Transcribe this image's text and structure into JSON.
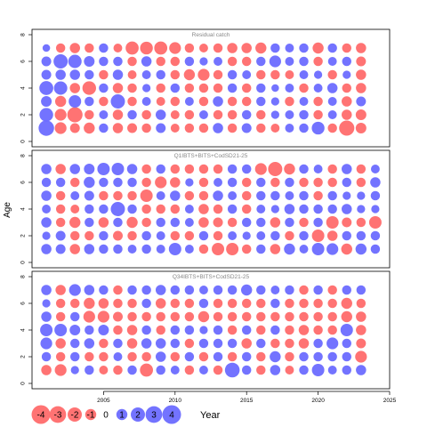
{
  "chart_data": {
    "type": "scatter",
    "subtype": "bubble-residuals",
    "ylabel": "Age",
    "xlabel": "Year",
    "xlim": [
      2000,
      2025
    ],
    "x_ticks": [
      2005,
      2010,
      2015,
      2020,
      2025
    ],
    "ylim": [
      0,
      8
    ],
    "y_ticks": [
      0,
      2,
      4,
      6,
      8
    ],
    "colors": {
      "positive": "#6b6bff",
      "negative": "#ff6b6b"
    },
    "legend": {
      "position": "bottom-left",
      "entries": [
        {
          "label": "-4",
          "value": -4
        },
        {
          "label": "-3",
          "value": -3
        },
        {
          "label": "-2",
          "value": -2
        },
        {
          "label": "-1",
          "value": -1
        },
        {
          "label": "0",
          "value": 0
        },
        {
          "label": "1",
          "value": 1
        },
        {
          "label": "2",
          "value": 2
        },
        {
          "label": "3",
          "value": 3
        },
        {
          "label": "4",
          "value": 4
        }
      ]
    },
    "panels": [
      {
        "title": "Residual catch",
        "x_start": 2001,
        "ages": [
          1,
          2,
          3,
          4,
          5,
          6,
          7
        ],
        "residuals": [
          [
            2.5,
            -1.2,
            -0.7,
            -1.0,
            0.6,
            -0.8,
            -0.7,
            -0.6,
            0.7,
            -0.5,
            -0.6,
            -0.6,
            0.8,
            -0.6,
            0.7,
            -0.6,
            -0.5,
            0.5,
            0.6,
            1.5,
            -0.6,
            -2.4,
            -0.9
          ],
          [
            1.8,
            -1.2,
            -2.4,
            -0.6,
            0.5,
            -0.8,
            0.6,
            -0.6,
            0.8,
            -0.5,
            -0.6,
            0.5,
            -0.6,
            -0.6,
            0.6,
            -0.6,
            0.4,
            0.5,
            0.6,
            -0.6,
            0.5,
            -0.8,
            -0.9
          ],
          [
            0.9,
            -1.0,
            1.4,
            0.6,
            -0.6,
            2.0,
            -0.6,
            0.5,
            -0.5,
            -0.6,
            0.5,
            -0.6,
            0.8,
            -0.6,
            -0.6,
            0.6,
            0.4,
            -0.6,
            0.5,
            -0.6,
            0.5,
            -0.8,
            0.7
          ],
          [
            1.9,
            1.7,
            -0.8,
            -1.8,
            0.6,
            -0.8,
            -0.6,
            0.4,
            -0.6,
            0.6,
            -0.6,
            -0.6,
            -0.6,
            0.6,
            -0.6,
            0.6,
            0.3,
            0.5,
            -0.6,
            0.5,
            0.8,
            -0.6,
            -0.8
          ],
          [
            0.7,
            0.8,
            0.8,
            0.6,
            -0.6,
            0.8,
            -0.5,
            0.5,
            0.6,
            -0.6,
            -1.0,
            -1.2,
            -0.6,
            0.6,
            0.5,
            -0.6,
            -0.6,
            -0.5,
            0.5,
            0.4,
            -0.6,
            0.4,
            -0.8
          ],
          [
            0.7,
            2.0,
            1.7,
            0.9,
            0.6,
            0.6,
            -0.6,
            0.8,
            -0.6,
            -0.6,
            0.6,
            0.4,
            0.5,
            -0.6,
            -0.6,
            0.6,
            1.2,
            0.5,
            0.6,
            -0.6,
            0.5,
            0.6,
            -0.7
          ],
          [
            0.3,
            -0.6,
            -0.8,
            -0.6,
            0.6,
            -0.5,
            -1.6,
            -1.5,
            -1.6,
            -1.2,
            -0.6,
            -0.5,
            -0.6,
            -0.8,
            -0.8,
            -1.0,
            0.6,
            0.5,
            0.6,
            -1.0,
            0.6,
            -0.6,
            -0.8
          ]
        ]
      },
      {
        "title": "Q1IBTS+BITS+CodSD21-25",
        "x_start": 2001,
        "ages": [
          1,
          2,
          3,
          4,
          5,
          6,
          7
        ],
        "residuals": [
          [
            0.8,
            0.7,
            -0.8,
            0.8,
            0.6,
            0.6,
            0.5,
            0.6,
            0.5,
            1.4,
            0.5,
            -0.6,
            -1.4,
            -1.4,
            -0.6,
            0.6,
            -0.8,
            1.0,
            0.5,
            1.4,
            1.2,
            -1.0,
            1.0,
            0.6
          ],
          [
            0.4,
            0.7,
            -0.6,
            -0.6,
            0.6,
            -0.7,
            -0.6,
            0.6,
            0.5,
            -0.6,
            -0.6,
            0.6,
            -0.6,
            0.5,
            0.4,
            0.5,
            0.6,
            -0.6,
            0.6,
            -1.4,
            -0.8,
            0.6,
            0.6,
            0.6
          ],
          [
            0.8,
            -0.6,
            -1.0,
            0.6,
            -0.8,
            0.6,
            -1.0,
            -0.6,
            0.6,
            0.6,
            0.5,
            -0.8,
            -0.7,
            -0.6,
            0.6,
            0.6,
            -0.8,
            0.6,
            -0.6,
            0.6,
            -1.4,
            -0.7,
            -0.6,
            -1.4
          ],
          [
            0.5,
            -0.6,
            -0.5,
            0.6,
            0.6,
            2.0,
            0.6,
            -0.6,
            -0.6,
            -0.6,
            0.5,
            -0.8,
            -0.6,
            0.6,
            -0.6,
            0.5,
            0.4,
            0.8,
            0.6,
            0.6,
            0.6,
            0.8,
            0.4,
            0.4
          ],
          [
            0.8,
            -0.6,
            0.5,
            0.7,
            -0.6,
            -0.6,
            -0.6,
            -1.4,
            0.5,
            0.8,
            -0.6,
            -0.6,
            0.8,
            0.5,
            -0.6,
            0.6,
            0.6,
            0.5,
            0.6,
            -0.6,
            0.6,
            0.4,
            0.4,
            0.6
          ],
          [
            0.6,
            0.6,
            -0.6,
            1.0,
            0.6,
            0.6,
            0.6,
            -0.6,
            -1.2,
            -0.8,
            0.4,
            -0.6,
            0.5,
            0.6,
            -0.6,
            0.6,
            -0.6,
            0.6,
            -0.6,
            -0.6,
            -0.6,
            0.6,
            -0.6,
            0.8
          ],
          [
            0.8,
            -0.8,
            0.8,
            0.9,
            1.4,
            1.4,
            0.8,
            -0.6,
            0.6,
            -0.6,
            -0.6,
            -0.6,
            -0.6,
            0.6,
            0.6,
            -1.2,
            -2.0,
            -1.0,
            0.6,
            0.5,
            -0.6,
            0.8,
            -0.6,
            0.5
          ]
        ]
      },
      {
        "title": "Q34IBTS+BITS+CodSD21-25",
        "x_start": 2001,
        "ages": [
          1,
          2,
          3,
          4,
          5,
          6,
          7
        ],
        "residuals": [
          [
            -0.8,
            -1.2,
            0.4,
            0.6,
            -0.5,
            -0.6,
            0.6,
            -1.6,
            0.6,
            0.5,
            -0.6,
            0.5,
            -0.6,
            2.2,
            0.6,
            -0.6,
            0.8,
            -0.5,
            0.6,
            1.4,
            0.5,
            0.6,
            0.8
          ],
          [
            0.6,
            -0.6,
            0.6,
            -0.6,
            -0.6,
            0.5,
            -0.6,
            -0.6,
            0.8,
            -0.6,
            0.6,
            -0.6,
            0.6,
            -0.6,
            0.6,
            -0.6,
            1.0,
            -0.6,
            0.6,
            0.6,
            0.6,
            0.6,
            -1.2
          ],
          [
            1.2,
            -0.8,
            0.6,
            0.8,
            -0.6,
            0.6,
            -0.8,
            0.8,
            0.8,
            0.6,
            -0.6,
            0.6,
            0.6,
            0.6,
            -0.8,
            0.6,
            -0.6,
            -0.6,
            -0.8,
            0.6,
            1.2,
            0.6,
            -0.7
          ],
          [
            1.4,
            1.4,
            0.9,
            0.6,
            0.9,
            -0.6,
            -0.8,
            0.6,
            -0.6,
            0.6,
            0.6,
            0.4,
            0.6,
            -0.6,
            0.6,
            -0.6,
            0.6,
            -0.6,
            -0.8,
            -0.6,
            -0.6,
            1.4,
            -0.8
          ],
          [
            0.8,
            -0.6,
            0.6,
            -1.2,
            -1.2,
            -0.7,
            -0.6,
            -0.6,
            -0.6,
            -0.6,
            -0.6,
            -1.0,
            -0.6,
            -0.6,
            -0.6,
            -0.6,
            -0.6,
            -0.6,
            -0.6,
            -0.6,
            -0.6,
            -1.0,
            -0.8
          ],
          [
            0.4,
            -0.6,
            -0.6,
            -1.0,
            -0.8,
            -0.6,
            -0.6,
            0.6,
            -0.8,
            -0.6,
            -0.6,
            0.6,
            -0.6,
            -0.6,
            -0.6,
            -0.6,
            0.6,
            -0.6,
            -0.6,
            -0.6,
            -0.6,
            -1.0,
            -0.6
          ],
          [
            0.8,
            -0.8,
            1.2,
            0.8,
            0.6,
            -0.6,
            0.6,
            0.6,
            0.8,
            0.6,
            0.6,
            0.5,
            0.6,
            0.6,
            1.0,
            0.6,
            0.5,
            0.6,
            -0.6,
            0.6,
            -0.6,
            0.6,
            0.6
          ]
        ]
      }
    ]
  }
}
